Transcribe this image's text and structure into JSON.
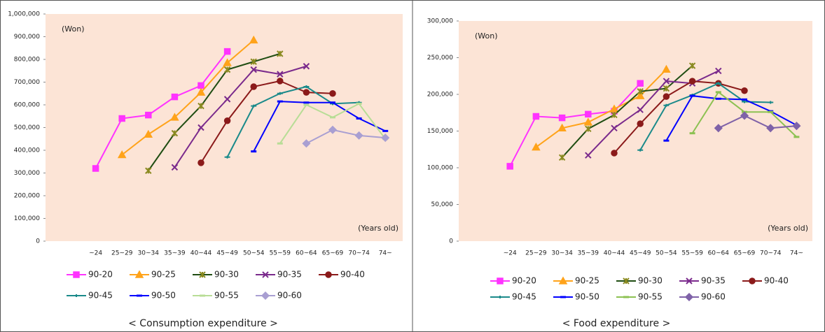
{
  "chart_data": [
    {
      "type": "line",
      "title": "< Consumption expenditure >",
      "y_label": "(Won)",
      "x_label": "(Years old)",
      "categories": [
        null,
        "~24",
        "25~29",
        "30~34",
        "35~39",
        "40~44",
        "45~49",
        "50~54",
        "55~59",
        "60~64",
        "65~69",
        "70~74",
        "74~"
      ],
      "ylim": [
        0,
        1000000
      ],
      "yticks": [
        0,
        {
          "value": 100000,
          "label": "100,000"
        },
        {
          "value": 200000,
          "label": "200,000"
        },
        {
          "value": 300000,
          "label": "300,000"
        },
        {
          "value": 400000,
          "label": "400,000"
        },
        {
          "value": 500000,
          "label": "500,000"
        },
        {
          "value": 600000,
          "label": "600,000"
        },
        {
          "value": 700000,
          "label": "700,000"
        },
        {
          "value": 800000,
          "label": "800,000"
        },
        {
          "value": 900000,
          "label": "900,000"
        },
        {
          "value": 1000000,
          "label": "1,000,000"
        }
      ],
      "background": "#fce4d6",
      "series": [
        {
          "name": "90-20",
          "color": "#ff33ff",
          "marker": "square",
          "values": [
            null,
            320000,
            540000,
            555000,
            635000,
            685000,
            835000,
            null,
            null,
            null,
            null,
            null,
            null
          ]
        },
        {
          "name": "90-25",
          "color": "#ffa31a",
          "marker": "triangle",
          "values": [
            null,
            null,
            380000,
            470000,
            545000,
            655000,
            785000,
            885000,
            null,
            null,
            null,
            null,
            null
          ]
        },
        {
          "name": "90-30",
          "color": "#1f4d12",
          "marker": "star",
          "values": [
            null,
            null,
            null,
            310000,
            475000,
            595000,
            755000,
            790000,
            825000,
            null,
            null,
            null,
            null
          ]
        },
        {
          "name": "90-35",
          "color": "#7a2a8c",
          "marker": "x",
          "values": [
            null,
            null,
            null,
            null,
            325000,
            500000,
            625000,
            755000,
            735000,
            770000,
            null,
            null,
            null
          ]
        },
        {
          "name": "90-40",
          "color": "#8b1a1a",
          "marker": "circle",
          "values": [
            null,
            null,
            null,
            null,
            null,
            345000,
            530000,
            680000,
            705000,
            655000,
            650000,
            null,
            null
          ]
        },
        {
          "name": "90-45",
          "color": "#1a8a8a",
          "marker": "plus",
          "values": [
            null,
            null,
            null,
            null,
            null,
            null,
            370000,
            595000,
            650000,
            680000,
            605000,
            610000,
            null
          ]
        },
        {
          "name": "90-50",
          "color": "#0000ff",
          "marker": "dash",
          "values": [
            null,
            null,
            null,
            null,
            null,
            null,
            null,
            395000,
            615000,
            610000,
            610000,
            540000,
            485000
          ]
        },
        {
          "name": "90-55",
          "color": "#b8dd96",
          "marker": "dash",
          "values": [
            null,
            null,
            null,
            null,
            null,
            null,
            null,
            null,
            430000,
            600000,
            545000,
            605000,
            450000
          ]
        },
        {
          "name": "90-60",
          "color": "#a99fd2",
          "marker": "diamond",
          "values": [
            null,
            null,
            null,
            null,
            null,
            null,
            null,
            null,
            null,
            430000,
            490000,
            465000,
            455000
          ]
        }
      ]
    },
    {
      "type": "line",
      "title": "< Food expenditure >",
      "y_label": "(Won)",
      "x_label": "(Years old)",
      "categories": [
        null,
        "~24",
        "25~29",
        "30~34",
        "35~39",
        "40~44",
        "45~49",
        "50~54",
        "55~59",
        "60~64",
        "65~69",
        "70~74",
        "74~"
      ],
      "ylim": [
        0,
        300000
      ],
      "yticks": [
        0,
        {
          "value": 50000,
          "label": "50,000"
        },
        {
          "value": 100000,
          "label": "100,000"
        },
        {
          "value": 150000,
          "label": "150,000"
        },
        {
          "value": 200000,
          "label": "200,000"
        },
        {
          "value": 250000,
          "label": "250,000"
        },
        {
          "value": 300000,
          "label": "300,000"
        }
      ],
      "background": "#fce4d6",
      "series": [
        {
          "name": "90-20",
          "color": "#ff33ff",
          "marker": "square",
          "values": [
            null,
            102000,
            170000,
            168000,
            173000,
            177000,
            215000,
            null,
            null,
            null,
            null,
            null,
            null
          ]
        },
        {
          "name": "90-25",
          "color": "#ffa31a",
          "marker": "triangle",
          "values": [
            null,
            null,
            128000,
            154000,
            162000,
            180000,
            198000,
            234000,
            null,
            null,
            null,
            null,
            null
          ]
        },
        {
          "name": "90-30",
          "color": "#1f4d12",
          "marker": "star",
          "values": [
            null,
            null,
            null,
            114000,
            153000,
            172000,
            204000,
            208000,
            239000,
            null,
            null,
            null,
            null
          ]
        },
        {
          "name": "90-35",
          "color": "#7a2a8c",
          "marker": "x",
          "values": [
            null,
            null,
            null,
            null,
            117000,
            154000,
            179000,
            218000,
            215000,
            232000,
            null,
            null,
            null
          ]
        },
        {
          "name": "90-40",
          "color": "#8b1a1a",
          "marker": "circle",
          "values": [
            null,
            null,
            null,
            null,
            null,
            120000,
            160000,
            197000,
            218000,
            215000,
            205000,
            null,
            null
          ]
        },
        {
          "name": "90-45",
          "color": "#1a8a8a",
          "marker": "plus",
          "values": [
            null,
            null,
            null,
            null,
            null,
            null,
            124000,
            185000,
            199000,
            215000,
            190000,
            189000,
            null
          ]
        },
        {
          "name": "90-50",
          "color": "#0000ff",
          "marker": "dash",
          "values": [
            null,
            null,
            null,
            null,
            null,
            null,
            null,
            137000,
            198000,
            194000,
            193000,
            177000,
            158000
          ]
        },
        {
          "name": "90-55",
          "color": "#8cc152",
          "marker": "dash",
          "values": [
            null,
            null,
            null,
            null,
            null,
            null,
            null,
            null,
            147000,
            203000,
            176000,
            176000,
            142000
          ]
        },
        {
          "name": "90-60",
          "color": "#7f62a8",
          "marker": "diamond",
          "values": [
            null,
            null,
            null,
            null,
            null,
            null,
            null,
            null,
            null,
            154000,
            171000,
            154000,
            157000
          ]
        }
      ]
    }
  ]
}
